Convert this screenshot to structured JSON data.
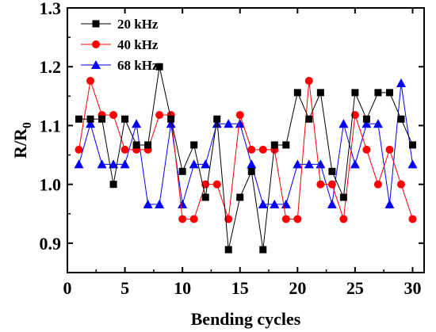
{
  "chart_data": {
    "type": "line",
    "title": "",
    "xlabel": "Bending cycles",
    "ylabel": "R/R",
    "ylabel_sub": "0",
    "xlim": [
      0,
      31
    ],
    "ylim": [
      0.85,
      1.3
    ],
    "xticks": [
      0,
      5,
      10,
      15,
      20,
      25,
      30
    ],
    "yticks": [
      0.9,
      1.0,
      1.1,
      1.2,
      1.3
    ],
    "xtick_labels": [
      "0",
      "5",
      "10",
      "15",
      "20",
      "25",
      "30"
    ],
    "ytick_labels": [
      "0.9",
      "1.0",
      "1.1",
      "1.2",
      "1.3"
    ],
    "grid": false,
    "legend_position": "top-left",
    "x": [
      1,
      2,
      3,
      4,
      5,
      6,
      7,
      8,
      9,
      10,
      11,
      12,
      13,
      14,
      15,
      16,
      17,
      18,
      19,
      20,
      21,
      22,
      23,
      24,
      25,
      26,
      27,
      28,
      29,
      30
    ],
    "series": [
      {
        "name": "20 kHz",
        "color": "#000000",
        "marker": "square",
        "values": [
          1.111,
          1.111,
          1.111,
          1.0,
          1.111,
          1.067,
          1.067,
          1.2,
          1.111,
          1.022,
          1.067,
          0.978,
          1.111,
          0.889,
          0.978,
          1.022,
          0.889,
          1.067,
          1.067,
          1.156,
          1.111,
          1.156,
          1.022,
          0.978,
          1.156,
          1.111,
          1.156,
          1.156,
          1.111,
          1.067
        ]
      },
      {
        "name": "40 kHz",
        "color": "#ff0000",
        "marker": "circle",
        "values": [
          1.059,
          1.176,
          1.118,
          1.118,
          1.059,
          1.059,
          1.059,
          1.118,
          1.118,
          0.941,
          0.941,
          1.0,
          1.0,
          0.941,
          1.118,
          1.059,
          1.059,
          1.059,
          0.941,
          0.941,
          1.176,
          1.0,
          1.0,
          0.941,
          1.118,
          1.059,
          1.0,
          1.059,
          1.0,
          0.941
        ]
      },
      {
        "name": "68 kHz",
        "color": "#0000ff",
        "marker": "triangle",
        "values": [
          1.034,
          1.103,
          1.034,
          1.034,
          1.034,
          1.103,
          0.966,
          0.966,
          1.103,
          0.966,
          1.034,
          1.034,
          1.103,
          1.103,
          1.103,
          1.034,
          0.966,
          0.966,
          0.966,
          1.034,
          1.034,
          1.034,
          0.966,
          1.103,
          1.034,
          1.103,
          1.103,
          0.966,
          1.172,
          1.034
        ]
      }
    ]
  }
}
